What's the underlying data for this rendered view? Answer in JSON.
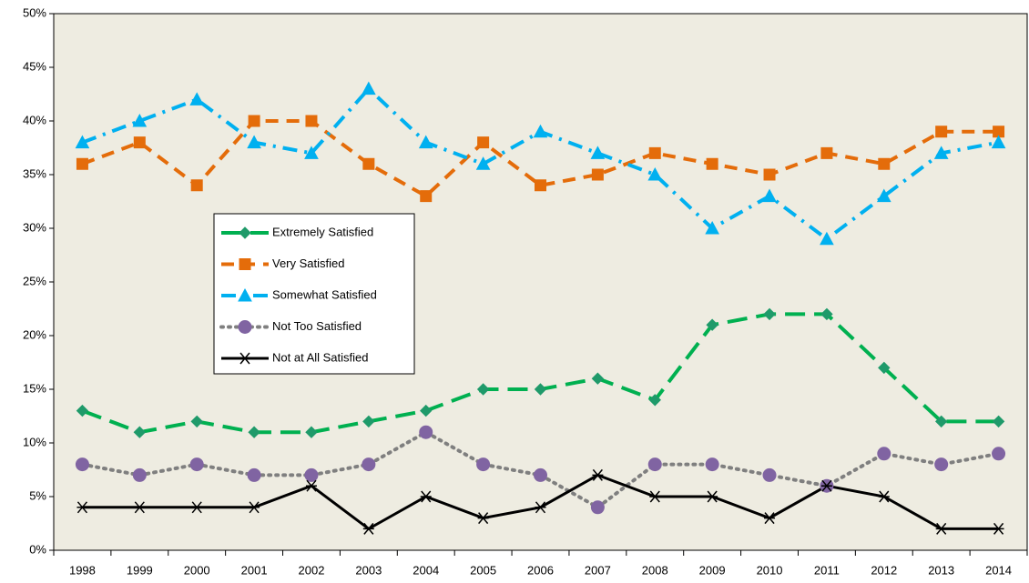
{
  "chart_data": {
    "type": "line",
    "categories": [
      "1998",
      "1999",
      "2000",
      "2001",
      "2002",
      "2003",
      "2004",
      "2005",
      "2006",
      "2007",
      "2008",
      "2009",
      "2010",
      "2011",
      "2012",
      "2013",
      "2014"
    ],
    "ylim": [
      0,
      50
    ],
    "yticks": [
      {
        "value": 0,
        "label": "0%"
      },
      {
        "value": 5,
        "label": "5%"
      },
      {
        "value": 10,
        "label": "10%"
      },
      {
        "value": 15,
        "label": "15%"
      },
      {
        "value": 20,
        "label": "20%"
      },
      {
        "value": 25,
        "label": "25%"
      },
      {
        "value": 30,
        "label": "30%"
      },
      {
        "value": 35,
        "label": "35%"
      },
      {
        "value": 40,
        "label": "40%"
      },
      {
        "value": 45,
        "label": "45%"
      },
      {
        "value": 50,
        "label": "50%"
      }
    ],
    "grid": false,
    "series": [
      {
        "name": "Extremely Satisfied",
        "color": "#00b050",
        "marker_color": "#1f9a6a",
        "marker": "diamond",
        "dash": "long-dash",
        "values": [
          13,
          11,
          12,
          11,
          11,
          12,
          13,
          15,
          15,
          16,
          14,
          21,
          22,
          22,
          17,
          12,
          12
        ]
      },
      {
        "name": "Very Satisfied",
        "color": "#e46c0a",
        "marker_color": "#e46c0a",
        "marker": "square",
        "dash": "dash",
        "values": [
          36,
          38,
          34,
          40,
          40,
          36,
          33,
          38,
          34,
          35,
          37,
          36,
          35,
          37,
          36,
          39,
          39
        ]
      },
      {
        "name": "Somewhat Satisfied",
        "color": "#00b0f0",
        "marker_color": "#00b0f0",
        "marker": "triangle",
        "dash": "dash-dot",
        "values": [
          38,
          40,
          42,
          38,
          37,
          43,
          38,
          36,
          39,
          37,
          35,
          30,
          33,
          29,
          33,
          37,
          38
        ]
      },
      {
        "name": "Not Too Satisfied",
        "color": "#7f7f7f",
        "marker_color": "#8064a2",
        "marker": "circle",
        "dash": "dot",
        "values": [
          8,
          7,
          8,
          7,
          7,
          8,
          11,
          8,
          7,
          4,
          8,
          8,
          7,
          6,
          9,
          8,
          9
        ]
      },
      {
        "name": "Not at All Satisfied",
        "color": "#000000",
        "marker_color": "#000000",
        "marker": "asterisk",
        "dash": "solid",
        "values": [
          4,
          4,
          4,
          4,
          6,
          2,
          5,
          3,
          4,
          7,
          5,
          5,
          3,
          6,
          5,
          2,
          2
        ]
      }
    ]
  }
}
